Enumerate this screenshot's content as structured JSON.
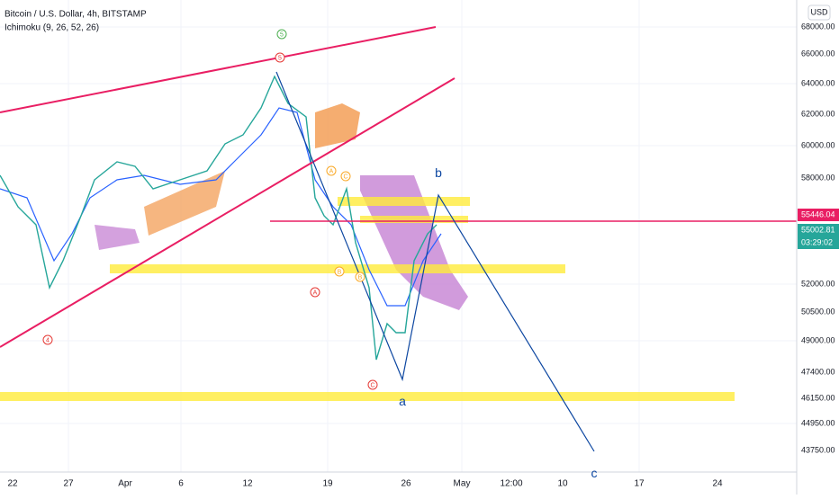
{
  "header": {
    "symbol": "Bitcoin / U.S. Dollar, 4h, BITSTAMP",
    "indicator": "Ichimoku (9, 26, 52, 26)"
  },
  "currency": "USD",
  "price_axis": [
    "68000.00",
    "66000.00",
    "64000.00",
    "62000.00",
    "60000.00",
    "58000.00",
    "52000.00",
    "50500.00",
    "49000.00",
    "47400.00",
    "46150.00",
    "44950.00",
    "43750.00"
  ],
  "price_labels": {
    "line": "55446.04",
    "last": "55002.81",
    "countdown": "03:29:02"
  },
  "time_axis": [
    "22",
    "27",
    "Apr",
    "6",
    "12",
    "19",
    "26",
    "May",
    "12:00",
    "10",
    "17",
    "24"
  ],
  "annotations": [
    "5",
    "5",
    "4",
    "A",
    "C",
    "B",
    "A",
    "B",
    "C",
    "b",
    "a",
    "c"
  ]
}
